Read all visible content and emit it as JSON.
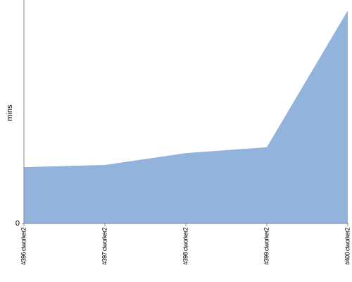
{
  "chart_data": {
    "type": "area",
    "y_label": "mins",
    "categories": [
      "#396 ciworker2",
      "#397 ciworker2",
      "#398 ciworker2",
      "#399 ciworker2",
      "#400 ciworker2"
    ],
    "values": [
      25.2,
      26.2,
      31.5,
      34.1,
      95.3
    ],
    "color": "#92b3db",
    "ylim": [
      0,
      100
    ],
    "yticks": [
      0
    ]
  }
}
